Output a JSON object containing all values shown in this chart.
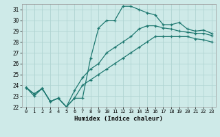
{
  "xlabel": "Humidex (Indice chaleur)",
  "background_color": "#ceeae8",
  "grid_color": "#b0d4d2",
  "line_color": "#1e7870",
  "x_values": [
    0,
    1,
    2,
    3,
    4,
    5,
    6,
    7,
    8,
    9,
    10,
    11,
    12,
    13,
    14,
    15,
    16,
    17,
    18,
    19,
    20,
    21,
    22,
    23
  ],
  "line1": [
    23.8,
    23.0,
    23.7,
    22.5,
    22.8,
    22.0,
    22.8,
    22.8,
    26.5,
    29.3,
    30.0,
    30.0,
    31.3,
    31.3,
    31.0,
    30.7,
    30.5,
    29.6,
    29.6,
    29.8,
    29.2,
    29.0,
    29.1,
    28.8
  ],
  "line2": [
    23.8,
    23.2,
    23.7,
    22.5,
    22.8,
    22.0,
    23.5,
    24.7,
    25.5,
    26.0,
    27.0,
    27.5,
    28.0,
    28.5,
    29.2,
    29.5,
    29.5,
    29.3,
    29.2,
    29.0,
    28.9,
    28.8,
    28.8,
    28.6
  ],
  "line3": [
    23.8,
    23.2,
    23.7,
    22.5,
    22.8,
    22.0,
    22.8,
    24.0,
    24.5,
    25.0,
    25.5,
    26.0,
    26.5,
    27.0,
    27.5,
    28.0,
    28.5,
    28.5,
    28.5,
    28.5,
    28.5,
    28.3,
    28.2,
    28.0
  ],
  "ylim": [
    22,
    31.5
  ],
  "yticks": [
    22,
    23,
    24,
    25,
    26,
    27,
    28,
    29,
    30,
    31
  ],
  "xticks": [
    0,
    1,
    2,
    3,
    4,
    5,
    6,
    7,
    8,
    9,
    10,
    11,
    12,
    13,
    14,
    15,
    16,
    17,
    18,
    19,
    20,
    21,
    22,
    23
  ],
  "marker": "+"
}
